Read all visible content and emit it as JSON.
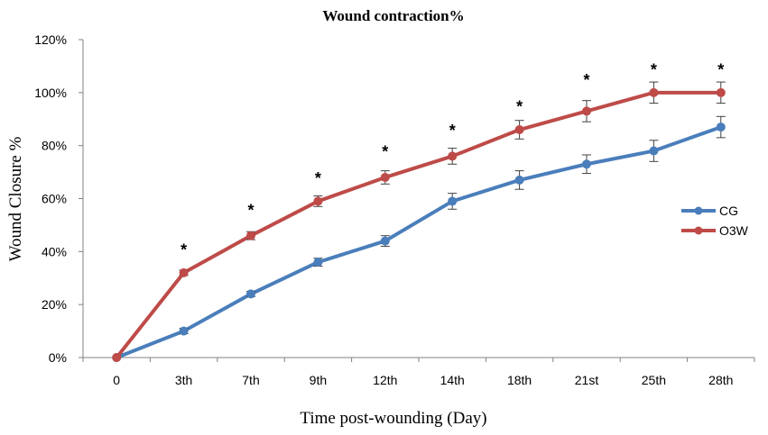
{
  "chart_data": {
    "type": "line",
    "title": "Wound contraction%",
    "xlabel": "Time post-wounding (Day)",
    "ylabel": "Wound Closure %",
    "categories": [
      "0",
      "3th",
      "7th",
      "9th",
      "12th",
      "14th",
      "18th",
      "21st",
      "25th",
      "28th"
    ],
    "ylim": [
      0,
      120
    ],
    "yticks": [
      "0%",
      "20%",
      "40%",
      "60%",
      "80%",
      "100%",
      "120%"
    ],
    "series": [
      {
        "name": "CG",
        "color": "#4a7ebb",
        "values": [
          0,
          10,
          24,
          36,
          44,
          59,
          67,
          73,
          78,
          87
        ],
        "errors": [
          0,
          1,
          1,
          1.5,
          2,
          3,
          3.5,
          3.5,
          4,
          4
        ]
      },
      {
        "name": "O3W",
        "color": "#be4b48",
        "values": [
          0,
          32,
          46,
          59,
          68,
          76,
          86,
          93,
          100,
          100
        ],
        "errors": [
          0,
          1,
          1.5,
          2,
          2.5,
          3,
          3.5,
          4,
          4,
          4
        ]
      }
    ],
    "significance": [
      "",
      "*",
      "*",
      "*",
      "*",
      "*",
      "*",
      "*",
      "*",
      "*"
    ],
    "significance_y": [
      0,
      42,
      57,
      69,
      79,
      87,
      96,
      106,
      110,
      110
    ],
    "legend_position": "right"
  }
}
